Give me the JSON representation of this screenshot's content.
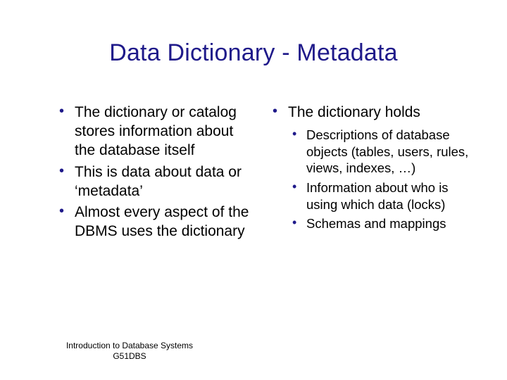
{
  "title": "Data Dictionary - Metadata",
  "left_bullets": [
    "The dictionary or catalog stores information about the database itself",
    "This is data about data or ‘metadata’",
    "Almost every aspect of the DBMS uses the dictionary"
  ],
  "right_bullet": "The dictionary holds",
  "right_sub_bullets": [
    "Descriptions of database objects (tables, users, rules, views, indexes, …)",
    "Information about who is using which data (locks)",
    "Schemas and mappings"
  ],
  "footer_line1": "Introduction to Database Systems",
  "footer_line2": "G51DBS",
  "style": {
    "title_color": "#1f1a8a",
    "body_color": "#000000",
    "bullet_color": "#1f1a8a",
    "background_color": "#ffffff",
    "title_fontsize": 34,
    "body_fontsize": 21,
    "sub_fontsize": 18.5,
    "footer_fontsize": 12,
    "font_family": "Verdana"
  }
}
